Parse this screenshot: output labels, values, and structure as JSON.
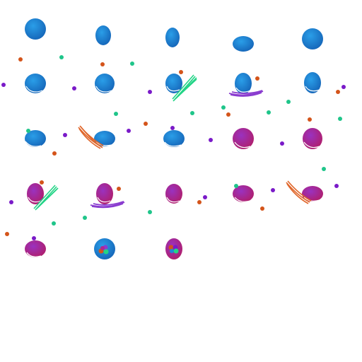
{
  "title": "",
  "colors": {
    "background": "#ffffff",
    "blue_cell": "#1e88d8",
    "blue_cell_shade": "#1565b8",
    "magenta_cell": "#b0288e",
    "magenta_cell_shade": "#8a1a6e",
    "purple_cell": "#8a3ccf",
    "orange_dot": "#d4541a",
    "green_dot": "#1fc58a",
    "purple_dot": "#7a1ac8",
    "green_spindle": "#22d486",
    "purple_spindle": "#8a3ccf",
    "orange_spindle": "#e0662a"
  },
  "icons": {
    "cell": "cell-icon",
    "particle": "particle-dot-icon",
    "spindle": "spindle-bundle-icon",
    "nuclei": "nuclei-cluster-icon"
  },
  "grid": {
    "rows": 5,
    "cols": 5,
    "cells_shown": 23
  },
  "cells": [
    {
      "id": "r1c1",
      "shape": "round",
      "color": "blue"
    },
    {
      "id": "r1c2",
      "shape": "tall",
      "color": "blue"
    },
    {
      "id": "r1c3",
      "shape": "tall-narrow",
      "color": "blue"
    },
    {
      "id": "r1c4",
      "shape": "wide",
      "color": "blue"
    },
    {
      "id": "r1c5",
      "shape": "round",
      "color": "blue"
    },
    {
      "id": "r2c1",
      "shape": "round",
      "color": "blue",
      "mark": "arc"
    },
    {
      "id": "r2c2",
      "shape": "round",
      "color": "blue",
      "mark": "arc"
    },
    {
      "id": "r2c3",
      "shape": "round",
      "color": "blue",
      "mark": "arc",
      "spindle": "green"
    },
    {
      "id": "r2c4",
      "shape": "round",
      "color": "blue",
      "mark": "arc",
      "spindle": "purple"
    },
    {
      "id": "r2c5",
      "shape": "tall",
      "color": "blue",
      "mark": "arc"
    },
    {
      "id": "r3c1",
      "shape": "wide",
      "color": "blue",
      "mark": "arc"
    },
    {
      "id": "r3c2",
      "shape": "wide",
      "color": "blue",
      "mark": "arc",
      "spindle": "orange"
    },
    {
      "id": "r3c3",
      "shape": "wide",
      "color": "blue",
      "mark": "arc"
    },
    {
      "id": "r3c4",
      "shape": "round",
      "color": "magenta",
      "mark": "arc"
    },
    {
      "id": "r3c5",
      "shape": "round",
      "color": "magenta",
      "mark": "arc"
    },
    {
      "id": "r4c1",
      "shape": "tall",
      "color": "magenta",
      "mark": "arc",
      "spindle": "green"
    },
    {
      "id": "r4c2",
      "shape": "tall",
      "color": "magenta",
      "mark": "arc",
      "spindle": "purple"
    },
    {
      "id": "r4c3",
      "shape": "round",
      "color": "magenta",
      "mark": "arc"
    },
    {
      "id": "r4c4",
      "shape": "wide",
      "color": "magenta",
      "mark": "arc"
    },
    {
      "id": "r4c5",
      "shape": "wide",
      "color": "magenta",
      "mark": "arc",
      "spindle": "orange"
    },
    {
      "id": "r5c1",
      "shape": "wide",
      "color": "magenta",
      "mark": "arc"
    },
    {
      "id": "r5c2",
      "shape": "round",
      "color": "blue",
      "nuclei": true
    },
    {
      "id": "r5c3",
      "shape": "tall",
      "color": "magenta",
      "nuclei": true
    }
  ]
}
